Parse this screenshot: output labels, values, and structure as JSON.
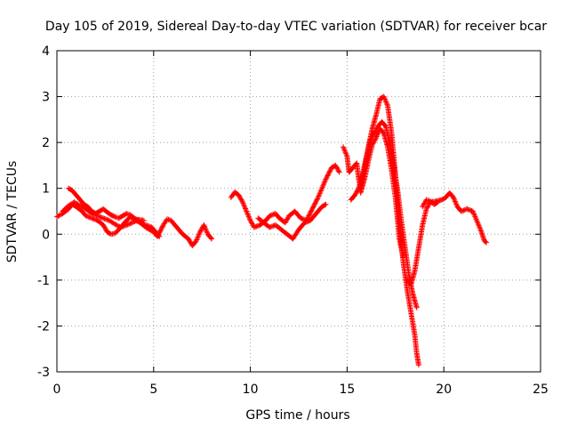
{
  "chart_data": {
    "type": "scatter",
    "title": "Day 105 of 2019, Sidereal Day-to-day VTEC variation (SDTVAR) for receiver bcar",
    "xlabel": "GPS time / hours",
    "ylabel": "SDTVAR / TECUs",
    "xlim": [
      0,
      25
    ],
    "ylim": [
      -3,
      4
    ],
    "xticks": [
      "0",
      "5",
      "10",
      "15",
      "20",
      "25"
    ],
    "yticks": [
      "-3",
      "-2",
      "-1",
      "0",
      "1",
      "2",
      "3",
      "4"
    ],
    "grid": true,
    "marker": "plus",
    "series": [
      {
        "name": "SDTVAR",
        "color": "#ff0000",
        "segments": [
          [
            [
              0.0,
              0.38
            ],
            [
              0.3,
              0.45
            ],
            [
              0.6,
              0.55
            ],
            [
              0.8,
              0.65
            ],
            [
              1.0,
              0.6
            ],
            [
              1.3,
              0.5
            ],
            [
              1.5,
              0.4
            ],
            [
              1.8,
              0.35
            ],
            [
              2.1,
              0.3
            ],
            [
              2.4,
              0.2
            ],
            [
              2.6,
              0.05
            ],
            [
              2.8,
              0.0
            ],
            [
              3.0,
              0.02
            ],
            [
              3.2,
              0.1
            ],
            [
              3.4,
              0.2
            ],
            [
              3.6,
              0.3
            ],
            [
              3.8,
              0.38
            ],
            [
              4.0,
              0.32
            ],
            [
              4.3,
              0.25
            ],
            [
              4.6,
              0.2
            ],
            [
              4.9,
              0.15
            ],
            [
              5.1,
              0.05
            ],
            [
              5.3,
              -0.05
            ]
          ],
          [
            [
              0.6,
              1.0
            ],
            [
              0.8,
              0.95
            ],
            [
              1.0,
              0.85
            ],
            [
              1.2,
              0.75
            ],
            [
              1.4,
              0.65
            ],
            [
              1.6,
              0.6
            ],
            [
              1.8,
              0.5
            ],
            [
              2.0,
              0.45
            ],
            [
              2.2,
              0.5
            ],
            [
              2.4,
              0.55
            ],
            [
              2.6,
              0.48
            ],
            [
              2.8,
              0.42
            ],
            [
              3.0,
              0.38
            ],
            [
              3.2,
              0.35
            ],
            [
              3.4,
              0.4
            ],
            [
              3.6,
              0.45
            ],
            [
              3.8,
              0.42
            ],
            [
              4.0,
              0.35
            ],
            [
              4.2,
              0.3
            ],
            [
              4.4,
              0.22
            ],
            [
              4.6,
              0.15
            ],
            [
              4.8,
              0.1
            ],
            [
              5.0,
              0.05
            ],
            [
              5.2,
              -0.05
            ],
            [
              5.5,
              0.2
            ],
            [
              5.7,
              0.33
            ],
            [
              5.9,
              0.3
            ],
            [
              6.2,
              0.15
            ],
            [
              6.5,
              0.0
            ],
            [
              6.8,
              -0.1
            ],
            [
              7.0,
              -0.25
            ],
            [
              7.2,
              -0.15
            ],
            [
              7.4,
              0.05
            ],
            [
              7.6,
              0.2
            ],
            [
              7.8,
              0.0
            ],
            [
              8.0,
              -0.1
            ]
          ],
          [
            [
              0.3,
              0.5
            ],
            [
              0.6,
              0.62
            ],
            [
              0.9,
              0.7
            ],
            [
              1.2,
              0.62
            ],
            [
              1.5,
              0.55
            ],
            [
              1.8,
              0.45
            ],
            [
              2.1,
              0.4
            ],
            [
              2.4,
              0.35
            ],
            [
              2.7,
              0.3
            ],
            [
              3.0,
              0.22
            ],
            [
              3.3,
              0.15
            ],
            [
              3.6,
              0.2
            ],
            [
              3.9,
              0.25
            ],
            [
              4.2,
              0.32
            ],
            [
              4.5,
              0.3
            ]
          ],
          [
            [
              9.0,
              0.8
            ],
            [
              9.2,
              0.92
            ],
            [
              9.4,
              0.85
            ],
            [
              9.6,
              0.7
            ],
            [
              9.8,
              0.5
            ],
            [
              10.0,
              0.3
            ],
            [
              10.2,
              0.15
            ],
            [
              10.5,
              0.2
            ],
            [
              10.8,
              0.3
            ],
            [
              11.0,
              0.4
            ],
            [
              11.3,
              0.45
            ],
            [
              11.5,
              0.35
            ],
            [
              11.8,
              0.25
            ],
            [
              12.0,
              0.4
            ],
            [
              12.3,
              0.5
            ],
            [
              12.6,
              0.35
            ],
            [
              12.9,
              0.3
            ],
            [
              13.2,
              0.55
            ],
            [
              13.5,
              0.8
            ],
            [
              13.7,
              1.0
            ],
            [
              13.9,
              1.2
            ],
            [
              14.2,
              1.45
            ],
            [
              14.4,
              1.5
            ],
            [
              14.6,
              1.35
            ]
          ],
          [
            [
              10.4,
              0.35
            ],
            [
              10.7,
              0.25
            ],
            [
              11.0,
              0.15
            ],
            [
              11.3,
              0.2
            ],
            [
              11.6,
              0.1
            ],
            [
              11.9,
              0.0
            ],
            [
              12.2,
              -0.1
            ],
            [
              12.5,
              0.1
            ],
            [
              12.8,
              0.25
            ],
            [
              13.1,
              0.3
            ],
            [
              13.4,
              0.45
            ],
            [
              13.7,
              0.6
            ],
            [
              13.9,
              0.65
            ]
          ],
          [
            [
              14.8,
              1.9
            ],
            [
              15.0,
              1.7
            ],
            [
              15.1,
              1.35
            ],
            [
              15.3,
              1.45
            ],
            [
              15.5,
              1.55
            ],
            [
              15.6,
              1.2
            ],
            [
              15.7,
              1.0
            ],
            [
              15.9,
              1.4
            ],
            [
              16.1,
              1.9
            ],
            [
              16.3,
              2.3
            ],
            [
              16.5,
              2.6
            ],
            [
              16.7,
              2.95
            ],
            [
              16.9,
              3.0
            ],
            [
              17.1,
              2.8
            ],
            [
              17.3,
              2.2
            ],
            [
              17.5,
              1.3
            ],
            [
              17.7,
              0.2
            ],
            [
              17.9,
              -0.6
            ],
            [
              18.1,
              -1.2
            ],
            [
              18.3,
              -1.7
            ],
            [
              18.5,
              -2.2
            ],
            [
              18.6,
              -2.6
            ],
            [
              18.7,
              -2.85
            ]
          ],
          [
            [
              15.2,
              0.75
            ],
            [
              15.4,
              0.85
            ],
            [
              15.6,
              1.0
            ],
            [
              15.8,
              1.3
            ],
            [
              16.0,
              1.7
            ],
            [
              16.2,
              2.05
            ],
            [
              16.4,
              2.2
            ],
            [
              16.6,
              2.35
            ],
            [
              16.8,
              2.45
            ],
            [
              17.0,
              2.35
            ],
            [
              17.2,
              2.0
            ],
            [
              17.4,
              1.5
            ],
            [
              17.6,
              1.0
            ],
            [
              17.8,
              0.3
            ],
            [
              18.0,
              -0.3
            ],
            [
              18.2,
              -0.9
            ],
            [
              18.4,
              -1.3
            ],
            [
              18.6,
              -1.6
            ]
          ],
          [
            [
              15.7,
              0.9
            ],
            [
              15.9,
              1.2
            ],
            [
              16.1,
              1.6
            ],
            [
              16.3,
              1.95
            ],
            [
              16.5,
              2.1
            ],
            [
              16.7,
              2.3
            ],
            [
              16.9,
              2.2
            ],
            [
              17.1,
              1.9
            ],
            [
              17.3,
              1.4
            ],
            [
              17.5,
              0.8
            ],
            [
              17.7,
              -0.1
            ],
            [
              17.9,
              -0.5
            ]
          ],
          [
            [
              18.1,
              -1.0
            ],
            [
              18.3,
              -1.1
            ],
            [
              18.5,
              -0.8
            ],
            [
              18.7,
              -0.3
            ],
            [
              18.9,
              0.2
            ],
            [
              19.1,
              0.55
            ],
            [
              19.3,
              0.7
            ],
            [
              19.6,
              0.72
            ],
            [
              19.9,
              0.75
            ],
            [
              20.1,
              0.8
            ],
            [
              20.3,
              0.9
            ],
            [
              20.5,
              0.8
            ],
            [
              20.7,
              0.6
            ],
            [
              20.9,
              0.5
            ],
            [
              21.2,
              0.55
            ],
            [
              21.5,
              0.5
            ],
            [
              21.7,
              0.3
            ],
            [
              21.9,
              0.1
            ],
            [
              22.1,
              -0.15
            ],
            [
              22.2,
              -0.18
            ]
          ],
          [
            [
              18.9,
              0.6
            ],
            [
              19.1,
              0.75
            ],
            [
              19.3,
              0.72
            ],
            [
              19.5,
              0.65
            ],
            [
              19.7,
              0.7
            ]
          ]
        ]
      }
    ]
  }
}
